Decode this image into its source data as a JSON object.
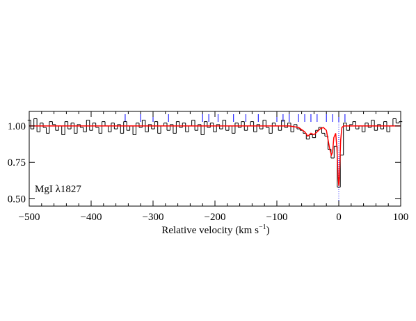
{
  "chart_data": {
    "type": "step",
    "label": "MgI λ1827",
    "xlabel": "Relative velocity (km s",
    "xlabel_exp": "−1",
    "xlabel_end": ")",
    "xlim": [
      -500,
      100
    ],
    "ylim": [
      0.45,
      1.1
    ],
    "xticks": [
      {
        "value": -500,
        "label": "−500"
      },
      {
        "value": -400,
        "label": "−400"
      },
      {
        "value": -300,
        "label": "−300"
      },
      {
        "value": -200,
        "label": "−200"
      },
      {
        "value": -100,
        "label": "−100"
      },
      0,
      100
    ],
    "yticks": [
      {
        "value": 0.5,
        "label": "0.50"
      },
      0.75,
      {
        "value": 1,
        "label": "1.00"
      }
    ],
    "x": [
      -500,
      -495,
      -490,
      -485,
      -480,
      -475,
      -470,
      -465,
      -460,
      -455,
      -450,
      -445,
      -440,
      -435,
      -430,
      -425,
      -420,
      -415,
      -410,
      -405,
      -400,
      -395,
      -390,
      -385,
      -380,
      -375,
      -370,
      -365,
      -360,
      -355,
      -350,
      -345,
      -340,
      -335,
      -330,
      -325,
      -320,
      -315,
      -310,
      -305,
      -300,
      -295,
      -290,
      -285,
      -280,
      -275,
      -270,
      -265,
      -260,
      -255,
      -250,
      -245,
      -240,
      -235,
      -230,
      -225,
      -220,
      -215,
      -210,
      -205,
      -200,
      -195,
      -190,
      -185,
      -180,
      -175,
      -170,
      -165,
      -160,
      -155,
      -150,
      -145,
      -140,
      -135,
      -130,
      -125,
      -120,
      -115,
      -110,
      -105,
      -100,
      -95,
      -90,
      -85,
      -80,
      -75,
      -70,
      -65,
      -60,
      -55,
      -50,
      -45,
      -40,
      -35,
      -30,
      -25,
      -20,
      -15,
      -10,
      -5,
      0,
      5,
      10,
      15,
      20,
      25,
      30,
      35,
      40,
      45,
      50,
      55,
      60,
      65,
      70,
      75,
      80,
      85,
      90,
      95,
      100
    ],
    "series": [
      {
        "name": "data",
        "color": "#000000",
        "values": [
          1.04,
          0.98,
          1.05,
          0.96,
          1.02,
          0.99,
          0.95,
          1.03,
          1.01,
          0.97,
          1.0,
          0.94,
          1.03,
          0.98,
          1.02,
          0.95,
          1.01,
          0.99,
          0.96,
          1.04,
          0.97,
          1.02,
          0.99,
          0.95,
          1.03,
          1.0,
          0.96,
          1.02,
          0.98,
          1.01,
          0.95,
          1.03,
          0.97,
          1.0,
          0.94,
          1.02,
          0.99,
          1.04,
          0.96,
          1.01,
          0.98,
          1.03,
          0.95,
          1.0,
          1.02,
          0.97,
          1.01,
          0.95,
          1.03,
          0.99,
          1.02,
          0.96,
          1.0,
          1.04,
          0.97,
          1.01,
          0.94,
          1.03,
          0.99,
          1.02,
          0.96,
          1.01,
          0.98,
          1.04,
          0.97,
          1.0,
          0.95,
          1.02,
          0.99,
          1.03,
          0.97,
          1.0,
          1.03,
          0.96,
          1.01,
          0.98,
          1.04,
          0.99,
          0.95,
          1.02,
          1.0,
          0.97,
          1.04,
          0.99,
          1.02,
          0.96,
          1.01,
          0.98,
          0.97,
          0.95,
          0.91,
          0.94,
          0.92,
          0.97,
          0.99,
          0.95,
          0.93,
          0.84,
          0.78,
          0.86,
          0.58,
          0.8,
          1.02,
          0.97,
          1.01,
          1.03,
          0.98,
          1.0,
          0.96,
          1.02,
          0.99,
          1.04,
          0.97,
          1.01,
          0.98,
          1.03,
          0.96,
          1.0,
          1.05,
          1.02,
          1.03
        ]
      }
    ],
    "model": {
      "color": "#ff0000",
      "x": [
        -500,
        -80,
        -65,
        -55,
        -50,
        -45,
        -40,
        -35,
        -30,
        -25,
        -20,
        -15,
        -12,
        -10,
        -8,
        -5,
        -3,
        -1,
        0,
        1,
        3,
        5,
        8,
        100
      ],
      "values": [
        1,
        1,
        0.99,
        0.96,
        0.93,
        0.95,
        0.94,
        0.96,
        0.98,
        0.99,
        0.97,
        0.85,
        0.8,
        0.82,
        0.92,
        0.95,
        0.85,
        0.65,
        0.59,
        0.65,
        0.9,
        0.99,
        1,
        1
      ]
    },
    "components": {
      "color": "#0000ff",
      "x": [
        -345,
        -320,
        -300,
        -275,
        -220,
        -210,
        -195,
        -170,
        -150,
        -130,
        -100,
        -90,
        -80,
        -65,
        -55,
        -45,
        -35,
        -20,
        -10,
        0,
        10
      ]
    }
  }
}
